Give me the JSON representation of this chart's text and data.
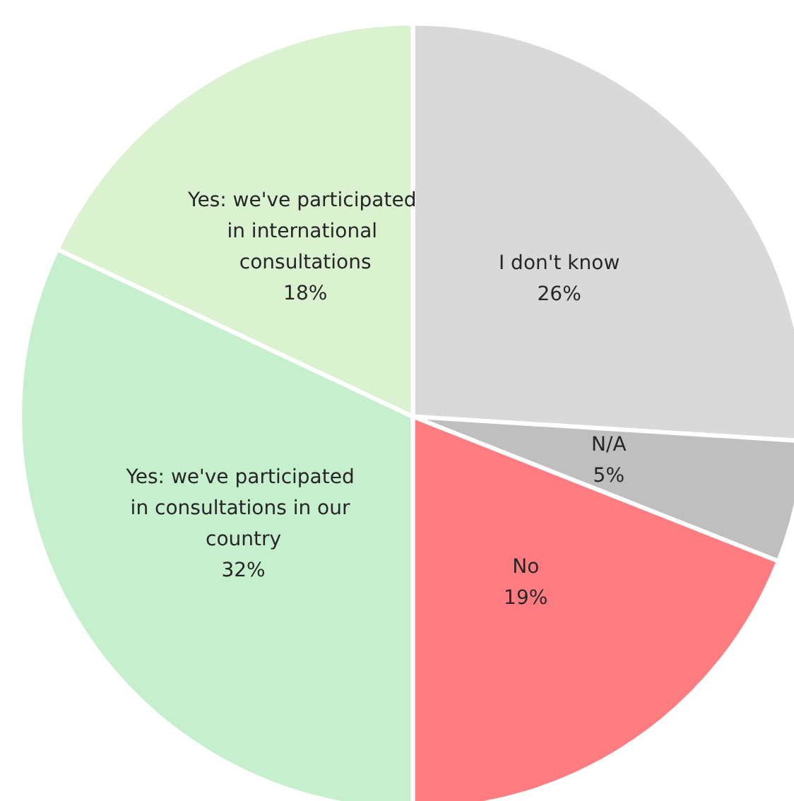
{
  "chart_data": {
    "type": "pie",
    "categories": [
      "I don't know",
      "N/A",
      "No",
      "Yes: we've participated in consultations in our country",
      "Yes: we've participated in international consultations"
    ],
    "values": [
      26,
      5,
      19,
      32,
      18
    ],
    "value_labels": [
      "26%",
      "5%",
      "19%",
      "32%",
      "18%"
    ],
    "colors": [
      "#d9d9d9",
      "#bfbfbf",
      "#ff7c80",
      "#c6efce",
      "#daf2d0"
    ],
    "legend": false
  }
}
